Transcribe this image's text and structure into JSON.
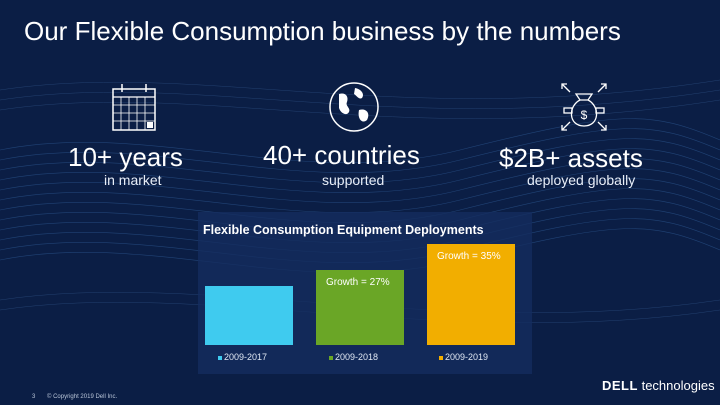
{
  "title": "Our Flexible Consumption business by the numbers",
  "stats": [
    {
      "big": "10+ years",
      "small": "in market",
      "icon": "calendar-icon"
    },
    {
      "big": "40+ countries",
      "small": "supported",
      "icon": "globe-icon"
    },
    {
      "big": "$2B+ assets",
      "small": "deployed globally",
      "icon": "money-bag-icon"
    }
  ],
  "chart_data": {
    "type": "bar",
    "title": "Flexible Consumption Equipment Deployments",
    "categories": [
      "2009-2017",
      "2009-2018",
      "2009-2019"
    ],
    "values": [
      1.0,
      1.27,
      1.72
    ],
    "annotations": [
      "",
      "Growth = 27%",
      "Growth = 35%"
    ],
    "colors": [
      "#3fcbef",
      "#6aa626",
      "#f2ae00"
    ],
    "ylim": [
      0,
      1.9
    ],
    "grid": false,
    "legend": "bottom"
  },
  "footer": {
    "page_number": "3",
    "copyright": "© Copyright 2019 Dell Inc."
  },
  "logo": {
    "brand": "DELL",
    "suffix": "Technologies"
  }
}
